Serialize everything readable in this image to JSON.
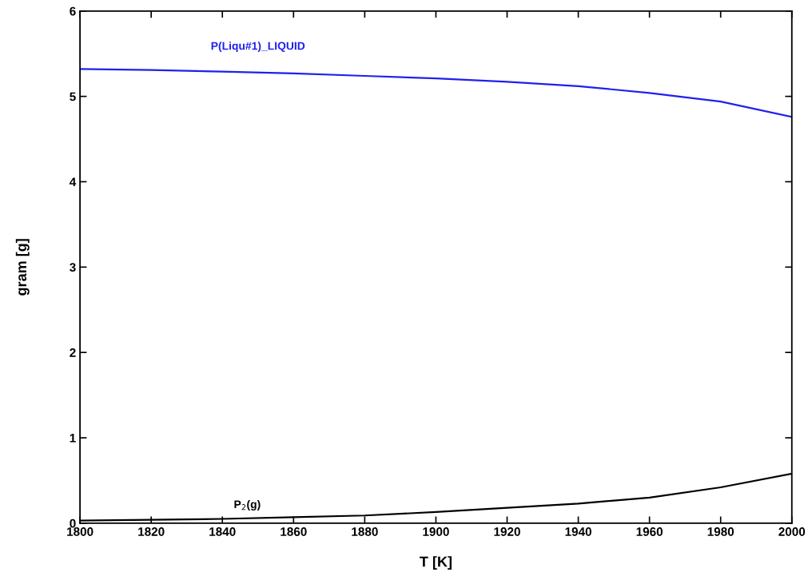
{
  "chart_data": {
    "type": "line",
    "xlabel": "T [K]",
    "ylabel": "gram [g]",
    "x": [
      1800,
      1820,
      1840,
      1860,
      1880,
      1900,
      1920,
      1940,
      1960,
      1980,
      2000
    ],
    "series": [
      {
        "name": "P(Liqu#1)_LIQUID",
        "color": "#2020ee",
        "values": [
          5.32,
          5.31,
          5.29,
          5.27,
          5.24,
          5.21,
          5.17,
          5.12,
          5.04,
          4.94,
          4.76
        ]
      },
      {
        "name": "P$_{2}$(g)",
        "color": "#000000",
        "values": [
          0.03,
          0.04,
          0.05,
          0.07,
          0.09,
          0.13,
          0.18,
          0.23,
          0.3,
          0.42,
          0.58
        ]
      }
    ],
    "xlim": [
      1800,
      2000
    ],
    "xticks": [
      1800,
      1820,
      1840,
      1860,
      1880,
      1900,
      1920,
      1940,
      1960,
      1980,
      2000
    ],
    "ylim": [
      0,
      6
    ],
    "yticks": [
      0,
      1,
      2,
      3,
      4,
      5,
      6
    ],
    "grid": false,
    "legend": false,
    "marker": "none",
    "line_style": "solid"
  }
}
